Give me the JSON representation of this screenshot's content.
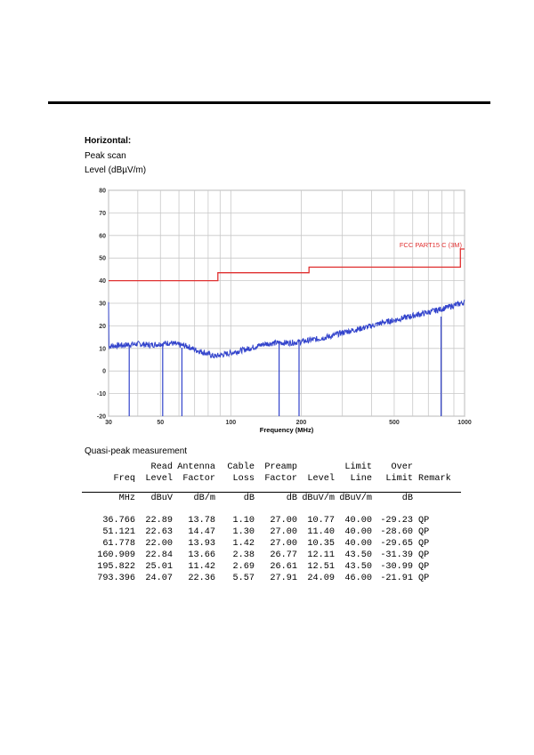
{
  "header": {
    "polarization": "Horizontal:",
    "scan": "Peak scan",
    "level_label": "Level (dBµV/m)"
  },
  "chart_data": {
    "type": "line",
    "xscale": "log",
    "xlabel": "Frequency (MHz)",
    "xlim": [
      30,
      1000
    ],
    "x_ticks": [
      30,
      50,
      100,
      200,
      500,
      1000
    ],
    "x_tick_labels": [
      "30",
      "50",
      "100",
      "200",
      "500",
      "1000"
    ],
    "ylim": [
      -20,
      80
    ],
    "y_ticks": [
      -20,
      -10,
      0,
      10,
      20,
      30,
      40,
      50,
      60,
      70,
      80
    ],
    "grid": true,
    "limit_line": {
      "name": "FCC PART15 C (3M)",
      "color": "#e03030",
      "points": [
        [
          30,
          40
        ],
        [
          88,
          40
        ],
        [
          88,
          43.5
        ],
        [
          216,
          43.5
        ],
        [
          216,
          46
        ],
        [
          960,
          46
        ],
        [
          960,
          54
        ],
        [
          1000,
          54
        ]
      ]
    },
    "peak_scan": {
      "color": "#3344cc",
      "points": [
        [
          30,
          11
        ],
        [
          35,
          11.5
        ],
        [
          40,
          12
        ],
        [
          45,
          11.5
        ],
        [
          50,
          12
        ],
        [
          55,
          12.5
        ],
        [
          60,
          11.5
        ],
        [
          65,
          11
        ],
        [
          70,
          9.5
        ],
        [
          78,
          8
        ],
        [
          85,
          6.5
        ],
        [
          90,
          7
        ],
        [
          100,
          8
        ],
        [
          120,
          10
        ],
        [
          140,
          12
        ],
        [
          160,
          12.5
        ],
        [
          180,
          12.5
        ],
        [
          200,
          13
        ],
        [
          230,
          14
        ],
        [
          270,
          15.5
        ],
        [
          300,
          17
        ],
        [
          350,
          18.5
        ],
        [
          400,
          20
        ],
        [
          450,
          21.5
        ],
        [
          500,
          22.5
        ],
        [
          600,
          24.5
        ],
        [
          700,
          26
        ],
        [
          800,
          27.5
        ],
        [
          900,
          29
        ],
        [
          1000,
          30.5
        ]
      ]
    },
    "qp_markers": {
      "color": "#3344cc",
      "freqs": [
        36.766,
        51.121,
        61.778,
        160.909,
        195.822,
        793.396
      ],
      "levels": [
        10.77,
        11.4,
        10.35,
        12.11,
        12.51,
        24.09
      ]
    }
  },
  "qp_title": "Quasi-peak measurement",
  "table": {
    "header_row1": [
      "",
      "Read",
      "Antenna",
      "Cable",
      "Preamp",
      "",
      "Limit",
      "Over",
      ""
    ],
    "header_row2": [
      "Freq",
      "Level",
      "Factor",
      "Loss",
      "Factor",
      "Level",
      "Line",
      "Limit",
      "Remark"
    ],
    "units": [
      "MHz",
      "dBuV",
      "dB/m",
      "dB",
      "dB",
      "dBuV/m",
      "dBuV/m",
      "dB",
      ""
    ],
    "rows": [
      [
        "36.766",
        "22.89",
        "13.78",
        "1.10",
        "27.00",
        "10.77",
        "40.00",
        "-29.23",
        "QP"
      ],
      [
        "51.121",
        "22.63",
        "14.47",
        "1.30",
        "27.00",
        "11.40",
        "40.00",
        "-28.60",
        "QP"
      ],
      [
        "61.778",
        "22.00",
        "13.93",
        "1.42",
        "27.00",
        "10.35",
        "40.00",
        "-29.65",
        "QP"
      ],
      [
        "160.909",
        "22.84",
        "13.66",
        "2.38",
        "26.77",
        "12.11",
        "43.50",
        "-31.39",
        "QP"
      ],
      [
        "195.822",
        "25.01",
        "11.42",
        "2.69",
        "26.61",
        "12.51",
        "43.50",
        "-30.99",
        "QP"
      ],
      [
        "793.396",
        "24.07",
        "22.36",
        "5.57",
        "27.91",
        "24.09",
        "46.00",
        "-21.91",
        "QP"
      ]
    ]
  }
}
